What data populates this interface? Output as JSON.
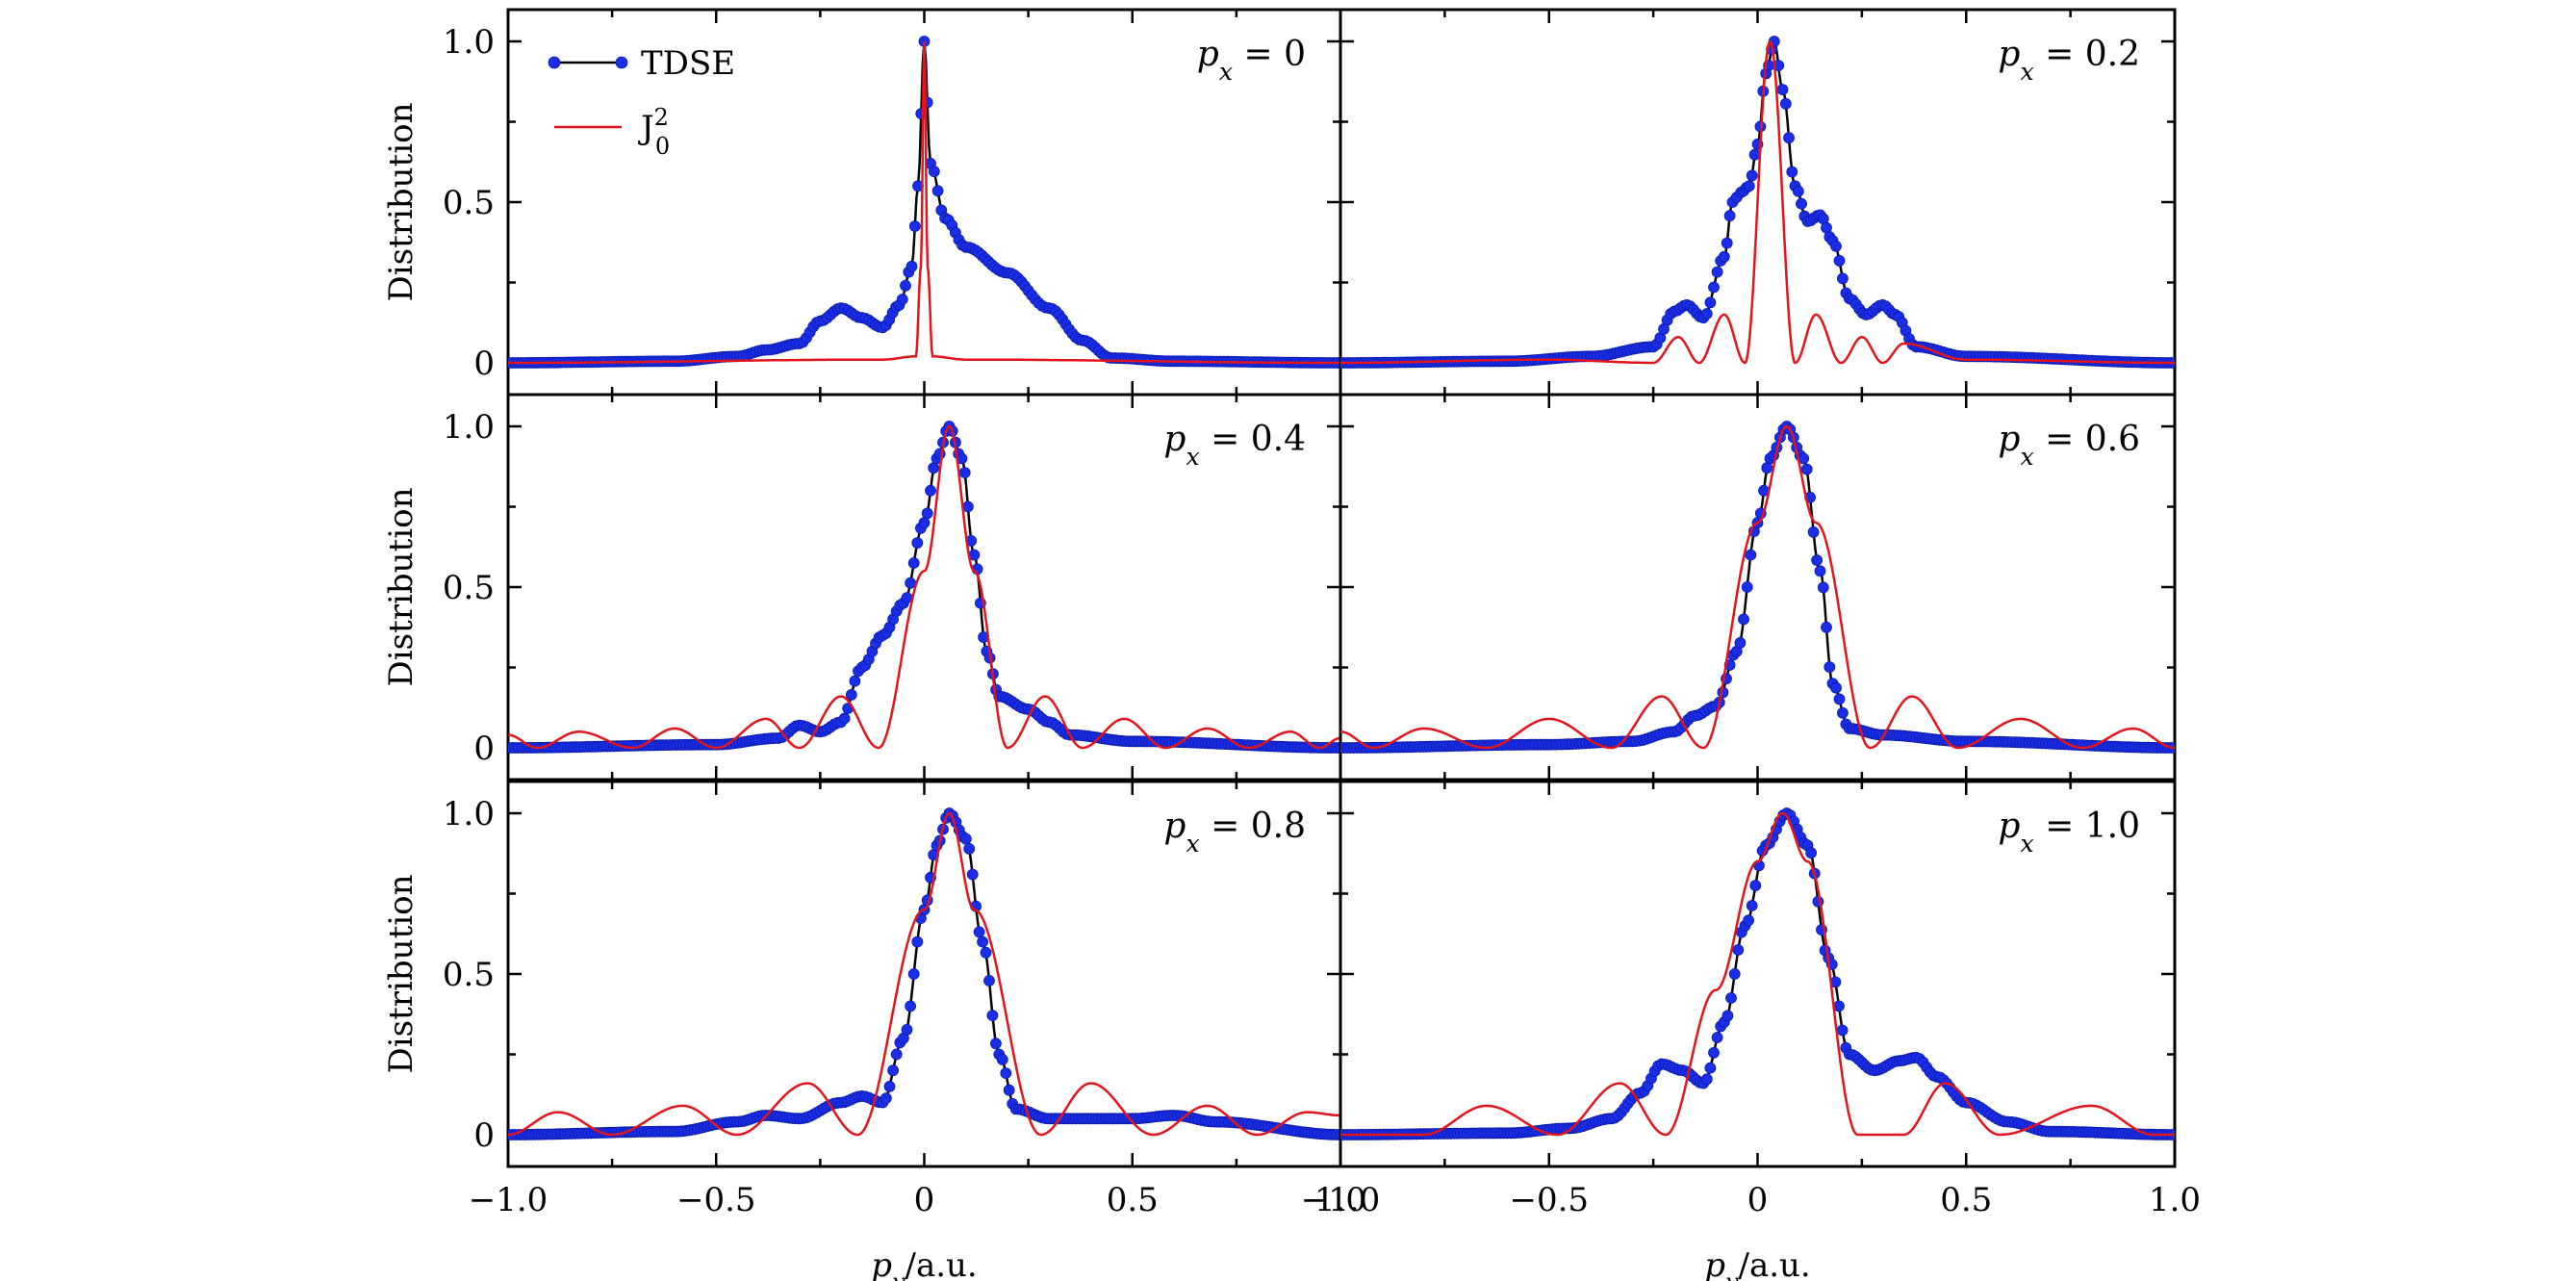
{
  "chart_data": {
    "type": "line",
    "layout": "3x2 panels",
    "xlabel": "p_y/a.u.",
    "ylabel": "Distribution",
    "xlim": [
      -1.0,
      1.0
    ],
    "ylim": [
      0,
      1.0
    ],
    "x_ticks": [
      "−1.0",
      "−0.5",
      "0",
      "0.5",
      "1.0"
    ],
    "y_ticks": [
      "0",
      "0.5",
      "1.0"
    ],
    "legend": {
      "placement": "top-left of first panel",
      "entries": [
        {
          "label": "TDSE",
          "color": "#1a2ee8",
          "marker": "circle",
          "line": "#000000"
        },
        {
          "label": "J_0^2",
          "color": "#e2141c",
          "marker": "none"
        }
      ]
    },
    "panels": [
      {
        "label": "p_x = 0",
        "px": 0,
        "series": [
          {
            "name": "TDSE",
            "points": [
              [
                -1.0,
                0.0
              ],
              [
                -0.6,
                0.005
              ],
              [
                -0.45,
                0.02
              ],
              [
                -0.38,
                0.04
              ],
              [
                -0.3,
                0.06
              ],
              [
                -0.25,
                0.13
              ],
              [
                -0.2,
                0.17
              ],
              [
                -0.15,
                0.14
              ],
              [
                -0.1,
                0.11
              ],
              [
                -0.06,
                0.18
              ],
              [
                -0.03,
                0.3
              ],
              [
                -0.015,
                0.55
              ],
              [
                0.0,
                1.0
              ],
              [
                0.015,
                0.62
              ],
              [
                0.05,
                0.45
              ],
              [
                0.1,
                0.36
              ],
              [
                0.2,
                0.28
              ],
              [
                0.3,
                0.17
              ],
              [
                0.38,
                0.07
              ],
              [
                0.45,
                0.015
              ],
              [
                0.6,
                0.005
              ],
              [
                1.0,
                0.0
              ]
            ]
          },
          {
            "name": "J_0^2",
            "points": [
              [
                -1.0,
                0.0
              ],
              [
                -0.1,
                0.01
              ],
              [
                -0.02,
                0.02
              ],
              [
                -0.008,
                0.3
              ],
              [
                0.0,
                1.0
              ],
              [
                0.008,
                0.3
              ],
              [
                0.02,
                0.02
              ],
              [
                0.1,
                0.01
              ],
              [
                1.0,
                0.0
              ]
            ]
          }
        ]
      },
      {
        "label": "p_x = 0.2",
        "px": 0.2,
        "series": [
          {
            "name": "TDSE",
            "points": [
              [
                -1.0,
                0.0
              ],
              [
                -0.6,
                0.005
              ],
              [
                -0.4,
                0.02
              ],
              [
                -0.25,
                0.05
              ],
              [
                -0.2,
                0.16
              ],
              [
                -0.17,
                0.18
              ],
              [
                -0.13,
                0.14
              ],
              [
                -0.08,
                0.33
              ],
              [
                -0.06,
                0.5
              ],
              [
                -0.04,
                0.53
              ],
              [
                -0.02,
                0.55
              ],
              [
                0.0,
                0.68
              ],
              [
                0.02,
                0.9
              ],
              [
                0.04,
                1.0
              ],
              [
                0.06,
                0.85
              ],
              [
                0.09,
                0.55
              ],
              [
                0.12,
                0.44
              ],
              [
                0.15,
                0.46
              ],
              [
                0.18,
                0.38
              ],
              [
                0.22,
                0.2
              ],
              [
                0.26,
                0.15
              ],
              [
                0.3,
                0.18
              ],
              [
                0.33,
                0.15
              ],
              [
                0.38,
                0.05
              ],
              [
                0.5,
                0.02
              ],
              [
                1.0,
                0.0
              ]
            ]
          },
          {
            "name": "J_0^2",
            "points": [
              [
                -1.0,
                0.0
              ],
              [
                -0.5,
                0.01
              ],
              [
                -0.25,
                0.0
              ],
              [
                -0.19,
                0.08
              ],
              [
                -0.14,
                0.0
              ],
              [
                -0.08,
                0.15
              ],
              [
                -0.03,
                0.0
              ],
              [
                0.03,
                1.0
              ],
              [
                0.09,
                0.0
              ],
              [
                0.14,
                0.15
              ],
              [
                0.2,
                0.0
              ],
              [
                0.25,
                0.08
              ],
              [
                0.3,
                0.0
              ],
              [
                0.35,
                0.06
              ],
              [
                0.5,
                0.01
              ],
              [
                1.0,
                0.0
              ]
            ]
          }
        ]
      },
      {
        "label": "p_x = 0.4",
        "px": 0.4,
        "series": [
          {
            "name": "TDSE",
            "points": [
              [
                -1.0,
                0.0
              ],
              [
                -0.5,
                0.01
              ],
              [
                -0.35,
                0.03
              ],
              [
                -0.3,
                0.07
              ],
              [
                -0.25,
                0.05
              ],
              [
                -0.2,
                0.08
              ],
              [
                -0.15,
                0.25
              ],
              [
                -0.1,
                0.35
              ],
              [
                -0.05,
                0.45
              ],
              [
                0.0,
                0.7
              ],
              [
                0.03,
                0.9
              ],
              [
                0.06,
                1.0
              ],
              [
                0.09,
                0.9
              ],
              [
                0.12,
                0.6
              ],
              [
                0.15,
                0.3
              ],
              [
                0.18,
                0.16
              ],
              [
                0.25,
                0.12
              ],
              [
                0.3,
                0.08
              ],
              [
                0.35,
                0.04
              ],
              [
                0.5,
                0.02
              ],
              [
                1.0,
                0.0
              ]
            ]
          },
          {
            "name": "J_0^2",
            "points": [
              [
                -1.0,
                0.04
              ],
              [
                -0.93,
                0.0
              ],
              [
                -0.83,
                0.05
              ],
              [
                -0.7,
                0.0
              ],
              [
                -0.6,
                0.06
              ],
              [
                -0.5,
                0.0
              ],
              [
                -0.38,
                0.09
              ],
              [
                -0.3,
                0.0
              ],
              [
                -0.2,
                0.16
              ],
              [
                -0.11,
                0.0
              ],
              [
                0.0,
                0.55
              ],
              [
                0.06,
                1.0
              ],
              [
                0.12,
                0.55
              ],
              [
                0.2,
                0.0
              ],
              [
                0.29,
                0.16
              ],
              [
                0.38,
                0.0
              ],
              [
                0.48,
                0.09
              ],
              [
                0.58,
                0.0
              ],
              [
                0.68,
                0.06
              ],
              [
                0.78,
                0.0
              ],
              [
                0.88,
                0.05
              ],
              [
                0.95,
                0.0
              ],
              [
                1.0,
                0.03
              ]
            ]
          }
        ]
      },
      {
        "label": "p_x = 0.6",
        "px": 0.6,
        "series": [
          {
            "name": "TDSE",
            "points": [
              [
                -1.0,
                0.0
              ],
              [
                -0.5,
                0.01
              ],
              [
                -0.3,
                0.02
              ],
              [
                -0.2,
                0.05
              ],
              [
                -0.15,
                0.1
              ],
              [
                -0.1,
                0.13
              ],
              [
                -0.05,
                0.3
              ],
              [
                0.0,
                0.7
              ],
              [
                0.03,
                0.9
              ],
              [
                0.07,
                1.0
              ],
              [
                0.11,
                0.9
              ],
              [
                0.15,
                0.55
              ],
              [
                0.18,
                0.2
              ],
              [
                0.22,
                0.06
              ],
              [
                0.3,
                0.04
              ],
              [
                0.5,
                0.02
              ],
              [
                1.0,
                0.0
              ]
            ]
          },
          {
            "name": "J_0^2",
            "points": [
              [
                -1.0,
                0.05
              ],
              [
                -0.92,
                0.0
              ],
              [
                -0.8,
                0.06
              ],
              [
                -0.65,
                0.0
              ],
              [
                -0.5,
                0.09
              ],
              [
                -0.35,
                0.0
              ],
              [
                -0.23,
                0.16
              ],
              [
                -0.13,
                0.0
              ],
              [
                0.0,
                0.7
              ],
              [
                0.07,
                1.0
              ],
              [
                0.14,
                0.7
              ],
              [
                0.27,
                0.0
              ],
              [
                0.37,
                0.16
              ],
              [
                0.48,
                0.0
              ],
              [
                0.63,
                0.09
              ],
              [
                0.78,
                0.0
              ],
              [
                0.9,
                0.06
              ],
              [
                1.0,
                0.0
              ]
            ]
          }
        ]
      },
      {
        "label": "p_x = 0.8",
        "px": 0.8,
        "series": [
          {
            "name": "TDSE",
            "points": [
              [
                -1.0,
                0.0
              ],
              [
                -0.6,
                0.01
              ],
              [
                -0.45,
                0.04
              ],
              [
                -0.38,
                0.06
              ],
              [
                -0.3,
                0.05
              ],
              [
                -0.2,
                0.1
              ],
              [
                -0.15,
                0.12
              ],
              [
                -0.1,
                0.1
              ],
              [
                -0.05,
                0.3
              ],
              [
                0.0,
                0.7
              ],
              [
                0.03,
                0.9
              ],
              [
                0.06,
                1.0
              ],
              [
                0.1,
                0.92
              ],
              [
                0.14,
                0.6
              ],
              [
                0.18,
                0.25
              ],
              [
                0.22,
                0.08
              ],
              [
                0.3,
                0.05
              ],
              [
                0.5,
                0.05
              ],
              [
                0.6,
                0.06
              ],
              [
                0.7,
                0.04
              ],
              [
                1.0,
                0.0
              ]
            ]
          },
          {
            "name": "J_0^2",
            "points": [
              [
                -1.0,
                0.0
              ],
              [
                -0.88,
                0.07
              ],
              [
                -0.75,
                0.0
              ],
              [
                -0.58,
                0.09
              ],
              [
                -0.45,
                0.0
              ],
              [
                -0.28,
                0.16
              ],
              [
                -0.16,
                0.0
              ],
              [
                0.0,
                0.7
              ],
              [
                0.06,
                1.0
              ],
              [
                0.12,
                0.7
              ],
              [
                0.28,
                0.0
              ],
              [
                0.4,
                0.16
              ],
              [
                0.55,
                0.0
              ],
              [
                0.68,
                0.09
              ],
              [
                0.8,
                0.0
              ],
              [
                0.92,
                0.07
              ],
              [
                1.0,
                0.06
              ]
            ]
          }
        ]
      },
      {
        "label": "p_x = 1.0",
        "px": 1.0,
        "series": [
          {
            "name": "TDSE",
            "points": [
              [
                -1.0,
                0.0
              ],
              [
                -0.6,
                0.005
              ],
              [
                -0.45,
                0.02
              ],
              [
                -0.35,
                0.05
              ],
              [
                -0.28,
                0.13
              ],
              [
                -0.23,
                0.22
              ],
              [
                -0.18,
                0.2
              ],
              [
                -0.13,
                0.16
              ],
              [
                -0.08,
                0.35
              ],
              [
                -0.03,
                0.65
              ],
              [
                0.02,
                0.9
              ],
              [
                0.07,
                1.0
              ],
              [
                0.12,
                0.9
              ],
              [
                0.17,
                0.55
              ],
              [
                0.22,
                0.25
              ],
              [
                0.28,
                0.2
              ],
              [
                0.34,
                0.23
              ],
              [
                0.38,
                0.24
              ],
              [
                0.43,
                0.18
              ],
              [
                0.5,
                0.1
              ],
              [
                0.6,
                0.04
              ],
              [
                0.7,
                0.01
              ],
              [
                1.0,
                0.0
              ]
            ]
          },
          {
            "name": "J_0^2",
            "points": [
              [
                -1.0,
                0.0
              ],
              [
                -0.8,
                0.0
              ],
              [
                -0.65,
                0.09
              ],
              [
                -0.48,
                0.0
              ],
              [
                -0.33,
                0.16
              ],
              [
                -0.22,
                0.0
              ],
              [
                -0.1,
                0.45
              ],
              [
                0.0,
                0.85
              ],
              [
                0.06,
                1.0
              ],
              [
                0.12,
                0.85
              ],
              [
                0.24,
                0.0
              ],
              [
                0.35,
                0.0
              ],
              [
                0.45,
                0.16
              ],
              [
                0.58,
                0.0
              ],
              [
                0.8,
                0.09
              ],
              [
                0.95,
                0.0
              ],
              [
                1.0,
                0.0
              ]
            ]
          }
        ]
      }
    ]
  }
}
